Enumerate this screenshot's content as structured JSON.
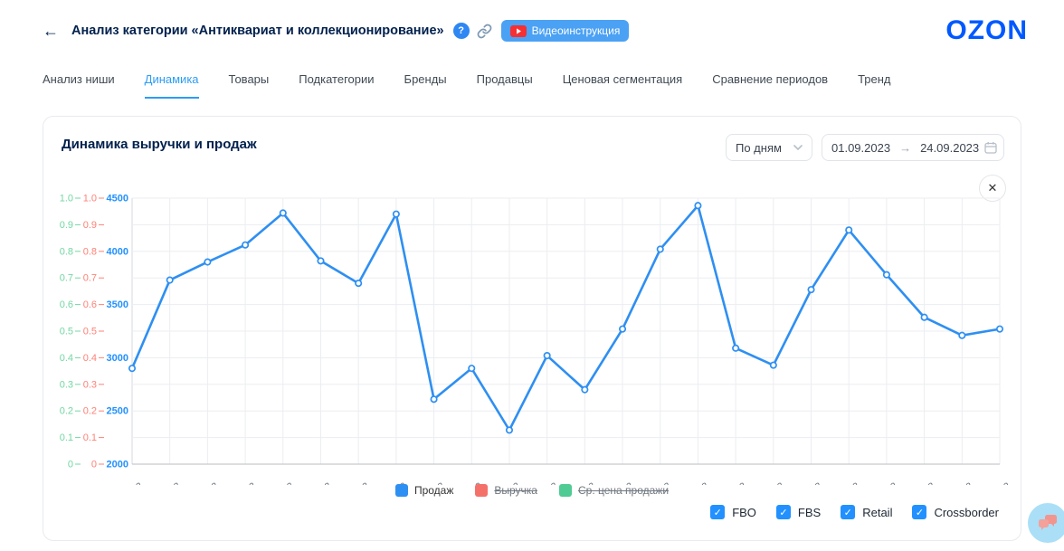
{
  "header": {
    "title": "Анализ категории «Антиквариат и коллекционирование»",
    "video_button_label": "Видеоинструкция",
    "logo_text": "OZON"
  },
  "icons": {
    "back": "←",
    "help": "?",
    "close": "✕",
    "range_arrow": "→",
    "check": "✓"
  },
  "tabs": {
    "active_index": 1,
    "items": [
      {
        "label": "Анализ ниши"
      },
      {
        "label": "Динамика"
      },
      {
        "label": "Товары"
      },
      {
        "label": "Подкатегории"
      },
      {
        "label": "Бренды"
      },
      {
        "label": "Продавцы"
      },
      {
        "label": "Ценовая сегментация"
      },
      {
        "label": "Сравнение периодов"
      },
      {
        "label": "Тренд"
      }
    ]
  },
  "panel": {
    "title": "Динамика выручки и продаж",
    "granularity_value": "По дням",
    "date_start": "01.09.2023",
    "date_end": "24.09.2023"
  },
  "chart_data": {
    "type": "line",
    "title": "Динамика выручки и продаж",
    "x": [
      "01-09-2023",
      "02-09-2023",
      "03-09-2023",
      "04-09-2023",
      "05-09-2023",
      "06-09-2023",
      "07-09-2023",
      "08-09-2023",
      "09-09-2023",
      "10-09-2023",
      "11-09-2023",
      "12-09-2023",
      "13-09-2023",
      "14-09-2023",
      "15-09-2023",
      "16-09-2023",
      "17-09-2023",
      "18-09-2023",
      "19-09-2023",
      "20-09-2023",
      "21-09-2023",
      "22-09-2023",
      "23-09-2023",
      "24-09-2023"
    ],
    "series": [
      {
        "name": "Продаж",
        "color": "#2e8ff2",
        "visible": true,
        "values": [
          2900,
          3730,
          3900,
          4060,
          4360,
          3910,
          3700,
          4350,
          2610,
          2900,
          2320,
          3020,
          2700,
          3270,
          4020,
          4430,
          3090,
          2930,
          3640,
          4200,
          3780,
          3380,
          3210,
          3270
        ]
      },
      {
        "name": "Выручка",
        "color": "#f4716a",
        "visible": false,
        "values": []
      },
      {
        "name": "Ср. цена продажи",
        "color": "#4fcb93",
        "visible": false,
        "values": []
      }
    ],
    "y_axes": [
      {
        "name": "Ср. цена продажи",
        "color": "#74d7a4",
        "min": 0,
        "max": 1,
        "step": 0.1
      },
      {
        "name": "Выручка",
        "color": "#ff8176",
        "min": 0,
        "max": 1,
        "step": 0.1
      },
      {
        "name": "Продаж",
        "color": "#2291ff",
        "min": 2000,
        "max": 4500,
        "step": 500,
        "minor_step": 250
      }
    ],
    "legend": [
      {
        "label": "Продаж",
        "color": "#2e8ff2",
        "active": true
      },
      {
        "label": "Выручка",
        "color": "#f4716a",
        "active": false
      },
      {
        "label": "Ср. цена продажи",
        "color": "#4fcb93",
        "active": false
      }
    ],
    "grid": true,
    "legend_position": "bottom"
  },
  "filters": [
    {
      "label": "FBO",
      "checked": true
    },
    {
      "label": "FBS",
      "checked": true
    },
    {
      "label": "Retail",
      "checked": true
    },
    {
      "label": "Crossborder",
      "checked": true
    }
  ]
}
